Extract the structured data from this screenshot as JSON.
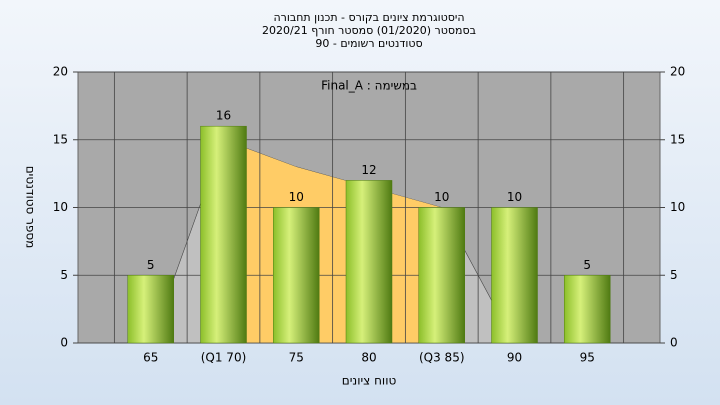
{
  "chart_data": {
    "type": "bar",
    "title": "היסטוגרמת ציונים בקורס - תכנון תחבורה",
    "subtitle": "בסמסטר  (01/2020)  סמסטר חורף 2020/21",
    "subtitle2": "סטודנטים רשומים - 90",
    "annotation": "Final_A : במשימה",
    "x_label": "טווח ציונים",
    "y_label": "מספר סטודנטים",
    "categories": [
      "65",
      "(Q1 70)",
      "75",
      "80",
      "(Q3 85)",
      "90",
      "95"
    ],
    "values": [
      5,
      16,
      10,
      12,
      10,
      10,
      5
    ],
    "color": "#9acd32",
    "areas": [
      {
        "color": "#c0c0c0",
        "values": [
          0,
          15,
          13,
          11.5,
          10,
          0,
          null
        ]
      },
      {
        "color": "#ffcc66",
        "values": [
          null,
          15,
          13,
          11.5,
          10,
          null,
          null
        ]
      }
    ],
    "ylim": [
      0,
      20
    ],
    "yticks": [
      0,
      5,
      10,
      15,
      20
    ],
    "grid": true
  }
}
